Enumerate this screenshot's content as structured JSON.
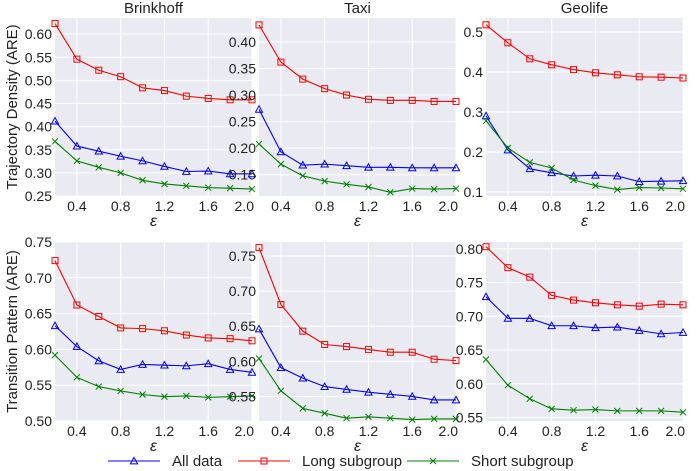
{
  "chart_data": [
    {
      "type": "line",
      "title": "Brinkhoff",
      "xlabel": "ε",
      "ylabel": "Trajectory Density (ARE)",
      "x": [
        0.2,
        0.4,
        0.6,
        0.8,
        1.0,
        1.2,
        1.4,
        1.6,
        1.8,
        2.0
      ],
      "xlim": [
        0.2,
        2.0
      ],
      "xticks": [
        0.4,
        0.8,
        1.2,
        1.6,
        2.0
      ],
      "ylim": [
        0.25,
        0.635
      ],
      "yticks": [
        0.25,
        0.3,
        0.35,
        0.4,
        0.45,
        0.5,
        0.55,
        0.6
      ],
      "series": [
        {
          "name": "All data",
          "values": [
            0.412,
            0.358,
            0.347,
            0.336,
            0.326,
            0.314,
            0.303,
            0.304,
            0.298,
            0.298
          ]
        },
        {
          "name": "Long subgroup",
          "values": [
            0.623,
            0.546,
            0.522,
            0.508,
            0.484,
            0.478,
            0.466,
            0.461,
            0.458,
            0.458
          ]
        },
        {
          "name": "Short subgroup",
          "values": [
            0.368,
            0.326,
            0.312,
            0.3,
            0.284,
            0.276,
            0.272,
            0.268,
            0.267,
            0.265
          ]
        }
      ]
    },
    {
      "type": "line",
      "title": "Taxi",
      "xlabel": "ε",
      "ylabel": "",
      "x": [
        0.2,
        0.4,
        0.6,
        0.8,
        1.0,
        1.2,
        1.4,
        1.6,
        1.8,
        2.0
      ],
      "xlim": [
        0.2,
        2.0
      ],
      "xticks": [
        0.4,
        0.8,
        1.2,
        1.6,
        2.0
      ],
      "ylim": [
        0.11,
        0.445
      ],
      "yticks": [
        0.15,
        0.2,
        0.25,
        0.3,
        0.35,
        0.4
      ],
      "series": [
        {
          "name": "All data",
          "values": [
            0.273,
            0.193,
            0.168,
            0.17,
            0.167,
            0.164,
            0.164,
            0.163,
            0.163,
            0.163
          ]
        },
        {
          "name": "Long subgroup",
          "values": [
            0.432,
            0.362,
            0.33,
            0.312,
            0.3,
            0.292,
            0.29,
            0.29,
            0.288,
            0.288
          ]
        },
        {
          "name": "Short subgroup",
          "values": [
            0.208,
            0.17,
            0.148,
            0.138,
            0.132,
            0.127,
            0.117,
            0.124,
            0.123,
            0.124
          ]
        }
      ]
    },
    {
      "type": "line",
      "title": "Geolife",
      "xlabel": "ε",
      "ylabel": "",
      "x": [
        0.2,
        0.4,
        0.6,
        0.8,
        1.0,
        1.2,
        1.4,
        1.6,
        1.8,
        2.0
      ],
      "xlim": [
        0.2,
        2.0
      ],
      "xticks": [
        0.4,
        0.8,
        1.2,
        1.6,
        2.0
      ],
      "ylim": [
        0.09,
        0.535
      ],
      "yticks": [
        0.1,
        0.2,
        0.3,
        0.4,
        0.5
      ],
      "series": [
        {
          "name": "All data",
          "values": [
            0.29,
            0.205,
            0.158,
            0.148,
            0.14,
            0.142,
            0.14,
            0.126,
            0.127,
            0.128
          ]
        },
        {
          "name": "Long subgroup",
          "values": [
            0.518,
            0.473,
            0.433,
            0.418,
            0.406,
            0.398,
            0.393,
            0.388,
            0.387,
            0.385
          ]
        },
        {
          "name": "Short subgroup",
          "values": [
            0.278,
            0.21,
            0.174,
            0.16,
            0.13,
            0.116,
            0.106,
            0.111,
            0.11,
            0.108
          ]
        }
      ]
    },
    {
      "type": "line",
      "title": "",
      "xlabel": "ε",
      "ylabel": "Transition Pattern (ARE)",
      "x": [
        0.2,
        0.4,
        0.6,
        0.8,
        1.0,
        1.2,
        1.4,
        1.6,
        1.8,
        2.0
      ],
      "xlim": [
        0.2,
        2.0
      ],
      "xticks": [
        0.4,
        0.8,
        1.2,
        1.6,
        2.0
      ],
      "ylim": [
        0.5,
        0.75
      ],
      "yticks": [
        0.5,
        0.55,
        0.6,
        0.65,
        0.7,
        0.75
      ],
      "series": [
        {
          "name": "All data",
          "values": [
            0.633,
            0.604,
            0.584,
            0.572,
            0.579,
            0.578,
            0.577,
            0.58,
            0.572,
            0.568
          ]
        },
        {
          "name": "Long subgroup",
          "values": [
            0.724,
            0.662,
            0.646,
            0.63,
            0.629,
            0.626,
            0.62,
            0.616,
            0.615,
            0.612
          ]
        },
        {
          "name": "Short subgroup",
          "values": [
            0.592,
            0.561,
            0.548,
            0.542,
            0.537,
            0.534,
            0.535,
            0.533,
            0.534,
            0.535
          ]
        }
      ]
    },
    {
      "type": "line",
      "title": "",
      "xlabel": "ε",
      "ylabel": "",
      "x": [
        0.2,
        0.4,
        0.6,
        0.8,
        1.0,
        1.2,
        1.4,
        1.6,
        1.8,
        2.0
      ],
      "xlim": [
        0.2,
        2.0
      ],
      "xticks": [
        0.4,
        0.8,
        1.2,
        1.6,
        2.0
      ],
      "ylim": [
        0.515,
        0.77
      ],
      "yticks": [
        0.55,
        0.6,
        0.65,
        0.7,
        0.75
      ],
      "series": [
        {
          "name": "All data",
          "values": [
            0.646,
            0.591,
            0.576,
            0.564,
            0.56,
            0.556,
            0.553,
            0.55,
            0.545,
            0.545
          ]
        },
        {
          "name": "Long subgroup",
          "values": [
            0.762,
            0.681,
            0.643,
            0.624,
            0.621,
            0.617,
            0.613,
            0.613,
            0.603,
            0.601
          ]
        },
        {
          "name": "Short subgroup",
          "values": [
            0.604,
            0.558,
            0.533,
            0.526,
            0.519,
            0.521,
            0.519,
            0.517,
            0.518,
            0.518
          ]
        }
      ]
    },
    {
      "type": "line",
      "title": "",
      "xlabel": "ε",
      "ylabel": "",
      "x": [
        0.2,
        0.4,
        0.6,
        0.8,
        1.0,
        1.2,
        1.4,
        1.6,
        1.8,
        2.0
      ],
      "xlim": [
        0.2,
        2.0
      ],
      "xticks": [
        0.4,
        0.8,
        1.2,
        1.6,
        2.0
      ],
      "ylim": [
        0.545,
        0.81
      ],
      "yticks": [
        0.55,
        0.6,
        0.65,
        0.7,
        0.75,
        0.8
      ],
      "series": [
        {
          "name": "All data",
          "values": [
            0.729,
            0.697,
            0.697,
            0.686,
            0.686,
            0.683,
            0.684,
            0.679,
            0.674,
            0.676
          ]
        },
        {
          "name": "Long subgroup",
          "values": [
            0.803,
            0.772,
            0.758,
            0.731,
            0.724,
            0.72,
            0.717,
            0.715,
            0.718,
            0.717
          ]
        },
        {
          "name": "Short subgroup",
          "values": [
            0.636,
            0.598,
            0.578,
            0.563,
            0.561,
            0.562,
            0.56,
            0.56,
            0.56,
            0.558
          ]
        }
      ]
    }
  ],
  "legend": {
    "placement": "bottom",
    "items": [
      {
        "label": "All data",
        "color": "#0000ff",
        "marker": "triangle"
      },
      {
        "label": "Long subgroup",
        "color": "#ff0000",
        "marker": "square"
      },
      {
        "label": "Short subgroup",
        "color": "#008000",
        "marker": "x"
      }
    ]
  },
  "style": {
    "plot_background": "#eaeaf2",
    "grid_color": "#ffffff",
    "series_colors": [
      "#0000ff",
      "#ff0000",
      "#008000"
    ],
    "markers": [
      "triangle",
      "square",
      "x"
    ]
  }
}
